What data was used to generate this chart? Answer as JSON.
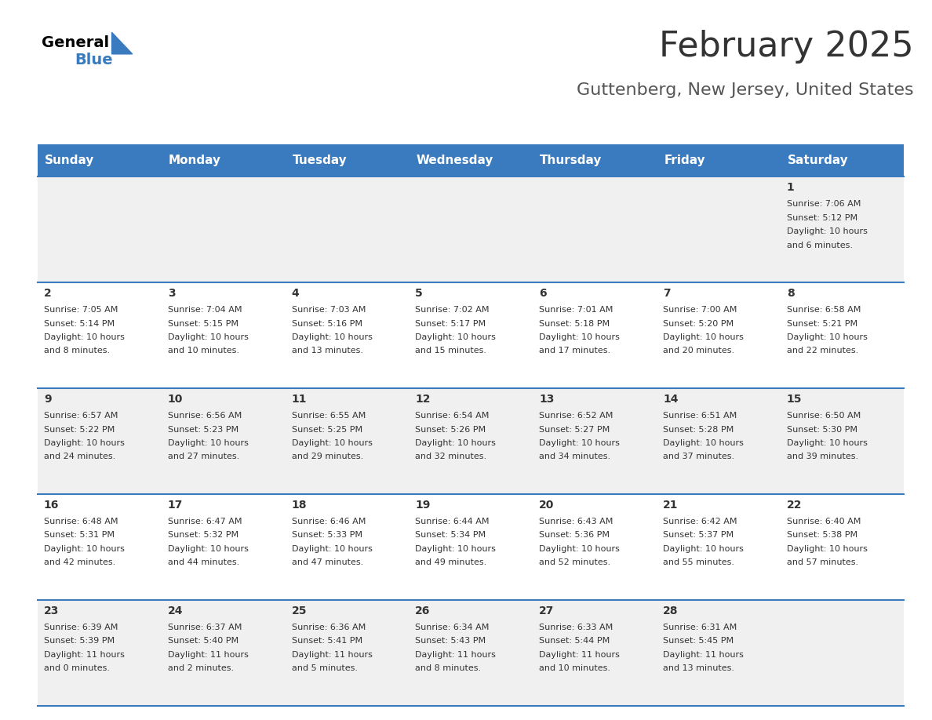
{
  "title": "February 2025",
  "subtitle": "Guttenberg, New Jersey, United States",
  "header_bg": "#3a7abf",
  "header_text": "#ffffff",
  "row_bg_odd": "#f0f0f0",
  "row_bg_even": "#ffffff",
  "separator_color": "#3a7abf",
  "day_headers": [
    "Sunday",
    "Monday",
    "Tuesday",
    "Wednesday",
    "Thursday",
    "Friday",
    "Saturday"
  ],
  "days": [
    {
      "date": 1,
      "col": 6,
      "row": 0,
      "sunrise": "7:06 AM",
      "sunset": "5:12 PM",
      "daylight": "10 hours and 6 minutes."
    },
    {
      "date": 2,
      "col": 0,
      "row": 1,
      "sunrise": "7:05 AM",
      "sunset": "5:14 PM",
      "daylight": "10 hours and 8 minutes."
    },
    {
      "date": 3,
      "col": 1,
      "row": 1,
      "sunrise": "7:04 AM",
      "sunset": "5:15 PM",
      "daylight": "10 hours and 10 minutes."
    },
    {
      "date": 4,
      "col": 2,
      "row": 1,
      "sunrise": "7:03 AM",
      "sunset": "5:16 PM",
      "daylight": "10 hours and 13 minutes."
    },
    {
      "date": 5,
      "col": 3,
      "row": 1,
      "sunrise": "7:02 AM",
      "sunset": "5:17 PM",
      "daylight": "10 hours and 15 minutes."
    },
    {
      "date": 6,
      "col": 4,
      "row": 1,
      "sunrise": "7:01 AM",
      "sunset": "5:18 PM",
      "daylight": "10 hours and 17 minutes."
    },
    {
      "date": 7,
      "col": 5,
      "row": 1,
      "sunrise": "7:00 AM",
      "sunset": "5:20 PM",
      "daylight": "10 hours and 20 minutes."
    },
    {
      "date": 8,
      "col": 6,
      "row": 1,
      "sunrise": "6:58 AM",
      "sunset": "5:21 PM",
      "daylight": "10 hours and 22 minutes."
    },
    {
      "date": 9,
      "col": 0,
      "row": 2,
      "sunrise": "6:57 AM",
      "sunset": "5:22 PM",
      "daylight": "10 hours and 24 minutes."
    },
    {
      "date": 10,
      "col": 1,
      "row": 2,
      "sunrise": "6:56 AM",
      "sunset": "5:23 PM",
      "daylight": "10 hours and 27 minutes."
    },
    {
      "date": 11,
      "col": 2,
      "row": 2,
      "sunrise": "6:55 AM",
      "sunset": "5:25 PM",
      "daylight": "10 hours and 29 minutes."
    },
    {
      "date": 12,
      "col": 3,
      "row": 2,
      "sunrise": "6:54 AM",
      "sunset": "5:26 PM",
      "daylight": "10 hours and 32 minutes."
    },
    {
      "date": 13,
      "col": 4,
      "row": 2,
      "sunrise": "6:52 AM",
      "sunset": "5:27 PM",
      "daylight": "10 hours and 34 minutes."
    },
    {
      "date": 14,
      "col": 5,
      "row": 2,
      "sunrise": "6:51 AM",
      "sunset": "5:28 PM",
      "daylight": "10 hours and 37 minutes."
    },
    {
      "date": 15,
      "col": 6,
      "row": 2,
      "sunrise": "6:50 AM",
      "sunset": "5:30 PM",
      "daylight": "10 hours and 39 minutes."
    },
    {
      "date": 16,
      "col": 0,
      "row": 3,
      "sunrise": "6:48 AM",
      "sunset": "5:31 PM",
      "daylight": "10 hours and 42 minutes."
    },
    {
      "date": 17,
      "col": 1,
      "row": 3,
      "sunrise": "6:47 AM",
      "sunset": "5:32 PM",
      "daylight": "10 hours and 44 minutes."
    },
    {
      "date": 18,
      "col": 2,
      "row": 3,
      "sunrise": "6:46 AM",
      "sunset": "5:33 PM",
      "daylight": "10 hours and 47 minutes."
    },
    {
      "date": 19,
      "col": 3,
      "row": 3,
      "sunrise": "6:44 AM",
      "sunset": "5:34 PM",
      "daylight": "10 hours and 49 minutes."
    },
    {
      "date": 20,
      "col": 4,
      "row": 3,
      "sunrise": "6:43 AM",
      "sunset": "5:36 PM",
      "daylight": "10 hours and 52 minutes."
    },
    {
      "date": 21,
      "col": 5,
      "row": 3,
      "sunrise": "6:42 AM",
      "sunset": "5:37 PM",
      "daylight": "10 hours and 55 minutes."
    },
    {
      "date": 22,
      "col": 6,
      "row": 3,
      "sunrise": "6:40 AM",
      "sunset": "5:38 PM",
      "daylight": "10 hours and 57 minutes."
    },
    {
      "date": 23,
      "col": 0,
      "row": 4,
      "sunrise": "6:39 AM",
      "sunset": "5:39 PM",
      "daylight": "11 hours and 0 minutes."
    },
    {
      "date": 24,
      "col": 1,
      "row": 4,
      "sunrise": "6:37 AM",
      "sunset": "5:40 PM",
      "daylight": "11 hours and 2 minutes."
    },
    {
      "date": 25,
      "col": 2,
      "row": 4,
      "sunrise": "6:36 AM",
      "sunset": "5:41 PM",
      "daylight": "11 hours and 5 minutes."
    },
    {
      "date": 26,
      "col": 3,
      "row": 4,
      "sunrise": "6:34 AM",
      "sunset": "5:43 PM",
      "daylight": "11 hours and 8 minutes."
    },
    {
      "date": 27,
      "col": 4,
      "row": 4,
      "sunrise": "6:33 AM",
      "sunset": "5:44 PM",
      "daylight": "11 hours and 10 minutes."
    },
    {
      "date": 28,
      "col": 5,
      "row": 4,
      "sunrise": "6:31 AM",
      "sunset": "5:45 PM",
      "daylight": "11 hours and 13 minutes."
    }
  ],
  "num_rows": 5,
  "num_cols": 7,
  "logo_text1": "General",
  "logo_text2": "Blue",
  "logo_triangle_color": "#3a7abf",
  "title_fontsize": 32,
  "subtitle_fontsize": 16,
  "header_fontsize": 11,
  "date_fontsize": 10,
  "cell_fontsize": 8
}
